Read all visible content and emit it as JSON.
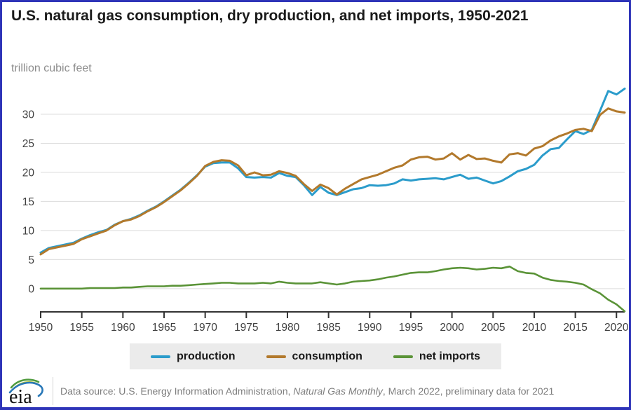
{
  "page": {
    "title": "U.S. natural gas consumption, dry production, and net imports, 1950-2021",
    "subtitle": "trillion cubic feet",
    "border_color": "#2e34b8"
  },
  "legend": {
    "items": [
      {
        "label": "production",
        "color": "#2b9ccb"
      },
      {
        "label": "consumption",
        "color": "#b2792c"
      },
      {
        "label": "net imports",
        "color": "#5a9337"
      }
    ]
  },
  "footer": {
    "logo_text": "eia",
    "source_prefix": "Data source: U.S. Energy Information Administration, ",
    "source_italic": "Natural Gas Monthly",
    "source_suffix": ", March 2022, preliminary data for 2021"
  },
  "chart_data": {
    "type": "line",
    "title": "U.S. natural gas consumption, dry production, and net imports, 1950-2021",
    "ylabel": "trillion cubic feet",
    "xlabel": "",
    "grid": true,
    "legend_position": "bottom",
    "ylim": [
      -4,
      34.5
    ],
    "yticks": [
      0,
      5,
      10,
      15,
      20,
      25,
      30
    ],
    "xticks": [
      1950,
      1955,
      1960,
      1965,
      1970,
      1975,
      1980,
      1985,
      1990,
      1995,
      2000,
      2005,
      2010,
      2015,
      2020
    ],
    "x": [
      1950,
      1951,
      1952,
      1953,
      1954,
      1955,
      1956,
      1957,
      1958,
      1959,
      1960,
      1961,
      1962,
      1963,
      1964,
      1965,
      1966,
      1967,
      1968,
      1969,
      1970,
      1971,
      1972,
      1973,
      1974,
      1975,
      1976,
      1977,
      1978,
      1979,
      1980,
      1981,
      1982,
      1983,
      1984,
      1985,
      1986,
      1987,
      1988,
      1989,
      1990,
      1991,
      1992,
      1993,
      1994,
      1995,
      1996,
      1997,
      1998,
      1999,
      2000,
      2001,
      2002,
      2003,
      2004,
      2005,
      2006,
      2007,
      2008,
      2009,
      2010,
      2011,
      2012,
      2013,
      2014,
      2015,
      2016,
      2017,
      2018,
      2019,
      2020,
      2021
    ],
    "series": [
      {
        "name": "production",
        "color": "#2b9ccb",
        "width": 3,
        "values": [
          6.2,
          7.0,
          7.3,
          7.6,
          7.9,
          8.6,
          9.2,
          9.7,
          10.1,
          11.0,
          11.6,
          12.0,
          12.6,
          13.4,
          14.1,
          15.0,
          16.0,
          17.0,
          18.2,
          19.5,
          21.0,
          21.6,
          21.7,
          21.7,
          20.7,
          19.2,
          19.1,
          19.2,
          19.1,
          19.9,
          19.4,
          19.2,
          17.8,
          16.1,
          17.5,
          16.5,
          16.1,
          16.6,
          17.1,
          17.3,
          17.8,
          17.7,
          17.8,
          18.1,
          18.8,
          18.6,
          18.8,
          18.9,
          19.0,
          18.8,
          19.2,
          19.6,
          18.9,
          19.1,
          18.6,
          18.1,
          18.5,
          19.3,
          20.2,
          20.6,
          21.3,
          22.9,
          24.0,
          24.2,
          25.7,
          27.1,
          26.6,
          27.3,
          30.6,
          34.0,
          33.4,
          34.4
        ]
      },
      {
        "name": "consumption",
        "color": "#b2792c",
        "width": 3,
        "values": [
          5.9,
          6.8,
          7.1,
          7.4,
          7.7,
          8.5,
          9.0,
          9.5,
          10.0,
          10.9,
          11.6,
          11.9,
          12.5,
          13.3,
          14.0,
          14.9,
          15.9,
          16.9,
          18.1,
          19.4,
          21.1,
          21.8,
          22.1,
          22.0,
          21.2,
          19.5,
          20.0,
          19.5,
          19.6,
          20.2,
          19.9,
          19.4,
          18.0,
          16.8,
          17.9,
          17.3,
          16.2,
          17.2,
          18.0,
          18.8,
          19.2,
          19.6,
          20.2,
          20.8,
          21.2,
          22.2,
          22.6,
          22.7,
          22.2,
          22.4,
          23.3,
          22.2,
          23.0,
          22.3,
          22.4,
          22.0,
          21.7,
          23.1,
          23.3,
          22.9,
          24.1,
          24.5,
          25.5,
          26.2,
          26.7,
          27.3,
          27.5,
          27.1,
          29.9,
          31.0,
          30.5,
          30.3
        ]
      },
      {
        "name": "net imports",
        "color": "#5a9337",
        "width": 2.6,
        "values": [
          0.0,
          0.0,
          0.0,
          0.0,
          0.0,
          0.0,
          0.1,
          0.1,
          0.1,
          0.1,
          0.2,
          0.2,
          0.3,
          0.4,
          0.4,
          0.4,
          0.5,
          0.5,
          0.6,
          0.7,
          0.8,
          0.9,
          1.0,
          1.0,
          0.9,
          0.9,
          0.9,
          1.0,
          0.9,
          1.2,
          1.0,
          0.9,
          0.9,
          0.9,
          1.1,
          0.9,
          0.7,
          0.9,
          1.2,
          1.3,
          1.4,
          1.6,
          1.9,
          2.1,
          2.4,
          2.7,
          2.8,
          2.8,
          3.0,
          3.3,
          3.5,
          3.6,
          3.5,
          3.3,
          3.4,
          3.6,
          3.5,
          3.8,
          3.0,
          2.7,
          2.6,
          1.9,
          1.5,
          1.3,
          1.2,
          1.0,
          0.7,
          -0.1,
          -0.8,
          -1.9,
          -2.7,
          -3.9
        ]
      }
    ]
  }
}
